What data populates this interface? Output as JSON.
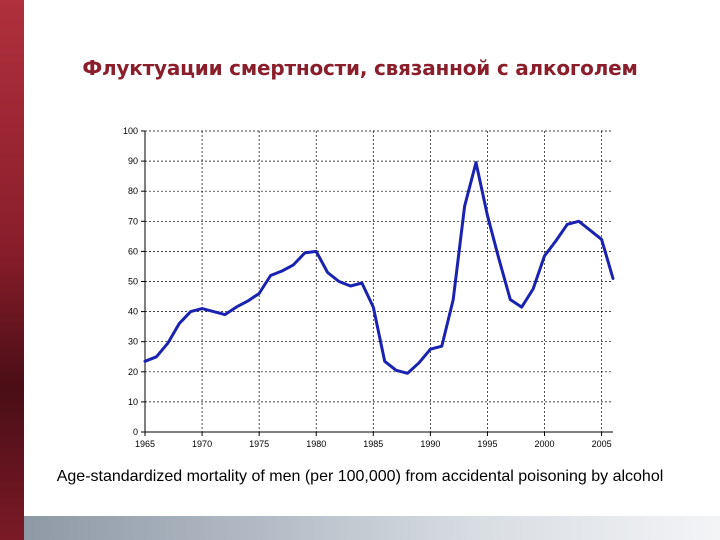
{
  "slide": {
    "title": "Флуктуации смертности, связанной с алкоголем",
    "caption": "Age-standardized mortality of men (per 100,000) from accidental poisoning by alcohol"
  },
  "colors": {
    "accent": "#8a1e2b",
    "line": "#1a22b0"
  },
  "chart_data": {
    "type": "line",
    "title": "",
    "xlabel": "",
    "ylabel": "",
    "xlim": [
      1965,
      2006
    ],
    "ylim": [
      0,
      100
    ],
    "grid": true,
    "x_ticks": [
      1965,
      1970,
      1975,
      1980,
      1985,
      1990,
      1995,
      2000,
      2005
    ],
    "y_ticks": [
      0,
      10,
      20,
      30,
      40,
      50,
      60,
      70,
      80,
      90,
      100
    ],
    "series": [
      {
        "x": [
          1965,
          1966,
          1967,
          1968,
          1969,
          1970,
          1971,
          1972,
          1973,
          1974,
          1975,
          1976,
          1977,
          1978,
          1979,
          1980,
          1981,
          1982,
          1983,
          1984,
          1985,
          1986,
          1987,
          1988,
          1989,
          1990,
          1991,
          1992,
          1993,
          1994,
          1995,
          1996,
          1997,
          1998,
          1999,
          2000,
          2001,
          2002,
          2003,
          2004,
          2005,
          2006
        ],
        "y": [
          23.5,
          25,
          29.5,
          36,
          40,
          41,
          40,
          39,
          41.5,
          43.5,
          46,
          52,
          53.5,
          55.5,
          59.5,
          60,
          53,
          50,
          48.5,
          49.5,
          41.5,
          23.5,
          20.5,
          19.5,
          23,
          27.5,
          28.5,
          44,
          75,
          89.5,
          72,
          57.5,
          44,
          41.5,
          47.5,
          58.5,
          63.5,
          69,
          70,
          67,
          64,
          51
        ]
      }
    ]
  }
}
